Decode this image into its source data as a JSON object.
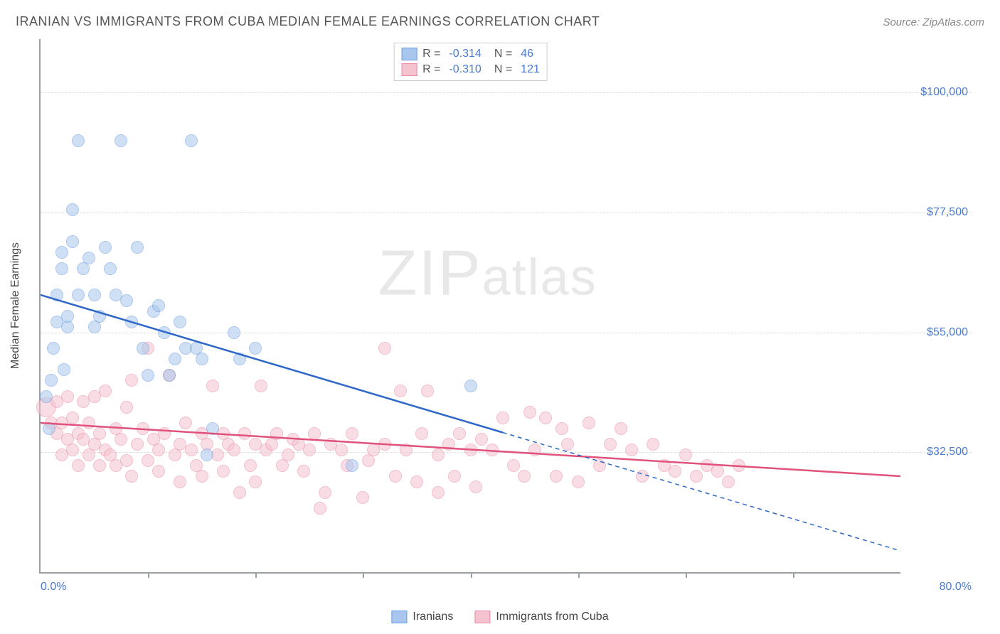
{
  "header": {
    "title": "IRANIAN VS IMMIGRANTS FROM CUBA MEDIAN FEMALE EARNINGS CORRELATION CHART",
    "source": "Source: ZipAtlas.com"
  },
  "watermark": {
    "zip": "ZIP",
    "atlas": "atlas"
  },
  "chart": {
    "type": "scatter",
    "ylabel": "Median Female Earnings",
    "xlim": [
      0,
      80
    ],
    "ylim": [
      10000,
      110000
    ],
    "xaxis_label_left": "0.0%",
    "xaxis_label_right": "80.0%",
    "xtick_positions": [
      10,
      20,
      30,
      40,
      50,
      60,
      70
    ],
    "yticks": [
      {
        "value": 32500,
        "label": "$32,500"
      },
      {
        "value": 55000,
        "label": "$55,000"
      },
      {
        "value": 77500,
        "label": "$77,500"
      },
      {
        "value": 100000,
        "label": "$100,000"
      }
    ],
    "background_color": "#ffffff",
    "grid_color": "#dddddd",
    "axis_color": "#9aa0a6",
    "label_color": "#4a7bd0",
    "point_radius": 9,
    "point_opacity": 0.55,
    "series": {
      "iranians": {
        "label": "Iranians",
        "fill_color": "#a9c7ee",
        "stroke_color": "#6a9be0",
        "R": "-0.314",
        "N": "46",
        "regression": {
          "color": "#2d67c8",
          "solid_x_range": [
            0,
            43
          ],
          "dashed_x_range": [
            43,
            80
          ],
          "y_at_x0": 62000,
          "y_at_x80": 14000,
          "width": 2.5
        },
        "points": [
          [
            0.5,
            43000
          ],
          [
            0.8,
            37000
          ],
          [
            1,
            46000
          ],
          [
            1.2,
            52000
          ],
          [
            1.5,
            57000
          ],
          [
            1.5,
            62000
          ],
          [
            2,
            70000
          ],
          [
            2,
            67000
          ],
          [
            2.2,
            48000
          ],
          [
            2.5,
            56000
          ],
          [
            2.5,
            58000
          ],
          [
            3,
            78000
          ],
          [
            3,
            72000
          ],
          [
            3.5,
            62000
          ],
          [
            3.5,
            91000
          ],
          [
            4,
            67000
          ],
          [
            4.5,
            69000
          ],
          [
            5,
            62000
          ],
          [
            5,
            56000
          ],
          [
            5.5,
            58000
          ],
          [
            6,
            71000
          ],
          [
            6.5,
            67000
          ],
          [
            7,
            62000
          ],
          [
            7.5,
            91000
          ],
          [
            8,
            61000
          ],
          [
            8.5,
            57000
          ],
          [
            9,
            71000
          ],
          [
            9.5,
            52000
          ],
          [
            10,
            47000
          ],
          [
            10.5,
            59000
          ],
          [
            11,
            60000
          ],
          [
            11.5,
            55000
          ],
          [
            12,
            47000
          ],
          [
            12.5,
            50000
          ],
          [
            13,
            57000
          ],
          [
            13.5,
            52000
          ],
          [
            14,
            91000
          ],
          [
            14.5,
            52000
          ],
          [
            15,
            50000
          ],
          [
            15.5,
            32000
          ],
          [
            16,
            37000
          ],
          [
            18,
            55000
          ],
          [
            18.5,
            50000
          ],
          [
            20,
            52000
          ],
          [
            29,
            30000
          ],
          [
            40,
            45000
          ]
        ]
      },
      "cuba": {
        "label": "Immigrants from Cuba",
        "fill_color": "#f5c2cf",
        "stroke_color": "#e98ba5",
        "R": "-0.310",
        "N": "121",
        "regression": {
          "color": "#e0517c",
          "solid_x_range": [
            0,
            80
          ],
          "y_at_x0": 38000,
          "y_at_x80": 28000,
          "width": 2.5
        },
        "points": [
          [
            0.5,
            41000,
            14
          ],
          [
            1,
            38000
          ],
          [
            1.5,
            36000
          ],
          [
            1.5,
            42000
          ],
          [
            2,
            32000
          ],
          [
            2,
            38000
          ],
          [
            2.5,
            43000
          ],
          [
            2.5,
            35000
          ],
          [
            3,
            33000
          ],
          [
            3,
            39000
          ],
          [
            3.5,
            36000
          ],
          [
            3.5,
            30000
          ],
          [
            4,
            42000
          ],
          [
            4,
            35000
          ],
          [
            4.5,
            32000
          ],
          [
            4.5,
            38000
          ],
          [
            5,
            34000
          ],
          [
            5,
            43000
          ],
          [
            5.5,
            30000
          ],
          [
            5.5,
            36000
          ],
          [
            6,
            33000
          ],
          [
            6,
            44000
          ],
          [
            6.5,
            32000
          ],
          [
            7,
            37000
          ],
          [
            7,
            30000
          ],
          [
            7.5,
            35000
          ],
          [
            8,
            31000
          ],
          [
            8,
            41000
          ],
          [
            8.5,
            28000
          ],
          [
            8.5,
            46000
          ],
          [
            9,
            34000
          ],
          [
            9.5,
            37000
          ],
          [
            10,
            31000
          ],
          [
            10,
            52000
          ],
          [
            10.5,
            35000
          ],
          [
            11,
            33000
          ],
          [
            11,
            29000
          ],
          [
            11.5,
            36000
          ],
          [
            12,
            47000
          ],
          [
            12.5,
            32000
          ],
          [
            13,
            34000
          ],
          [
            13,
            27000
          ],
          [
            13.5,
            38000
          ],
          [
            14,
            33000
          ],
          [
            14.5,
            30000
          ],
          [
            15,
            36000
          ],
          [
            15,
            28000
          ],
          [
            15.5,
            34000
          ],
          [
            16,
            45000
          ],
          [
            16.5,
            32000
          ],
          [
            17,
            36000
          ],
          [
            17,
            29000
          ],
          [
            17.5,
            34000
          ],
          [
            18,
            33000
          ],
          [
            18.5,
            25000
          ],
          [
            19,
            36000
          ],
          [
            19.5,
            30000
          ],
          [
            20,
            34000
          ],
          [
            20,
            27000
          ],
          [
            20.5,
            45000
          ],
          [
            21,
            33000
          ],
          [
            21.5,
            34000
          ],
          [
            22,
            36000
          ],
          [
            22.5,
            30000
          ],
          [
            23,
            32000
          ],
          [
            23.5,
            35000
          ],
          [
            24,
            34000
          ],
          [
            24.5,
            29000
          ],
          [
            25,
            33000
          ],
          [
            25.5,
            36000
          ],
          [
            26,
            22000
          ],
          [
            26.5,
            25000
          ],
          [
            27,
            34000
          ],
          [
            28,
            33000
          ],
          [
            28.5,
            30000
          ],
          [
            29,
            36000
          ],
          [
            30,
            24000
          ],
          [
            30.5,
            31000
          ],
          [
            31,
            33000
          ],
          [
            32,
            34000
          ],
          [
            32,
            52000
          ],
          [
            33,
            28000
          ],
          [
            33.5,
            44000
          ],
          [
            34,
            33000
          ],
          [
            35,
            27000
          ],
          [
            35.5,
            36000
          ],
          [
            36,
            44000
          ],
          [
            37,
            25000
          ],
          [
            37,
            32000
          ],
          [
            38,
            34000
          ],
          [
            38.5,
            28000
          ],
          [
            39,
            36000
          ],
          [
            40,
            33000
          ],
          [
            40.5,
            26000
          ],
          [
            41,
            35000
          ],
          [
            42,
            33000
          ],
          [
            43,
            39000
          ],
          [
            44,
            30000
          ],
          [
            45,
            28000
          ],
          [
            45.5,
            40000
          ],
          [
            46,
            33000
          ],
          [
            47,
            39000
          ],
          [
            48,
            28000
          ],
          [
            48.5,
            37000
          ],
          [
            49,
            34000
          ],
          [
            50,
            27000
          ],
          [
            51,
            38000
          ],
          [
            52,
            30000
          ],
          [
            53,
            34000
          ],
          [
            54,
            37000
          ],
          [
            55,
            33000
          ],
          [
            56,
            28000
          ],
          [
            57,
            34000
          ],
          [
            58,
            30000
          ],
          [
            59,
            29000
          ],
          [
            60,
            32000
          ],
          [
            61,
            28000
          ],
          [
            62,
            30000
          ],
          [
            63,
            29000
          ],
          [
            64,
            27000
          ],
          [
            65,
            30000
          ]
        ]
      }
    }
  }
}
